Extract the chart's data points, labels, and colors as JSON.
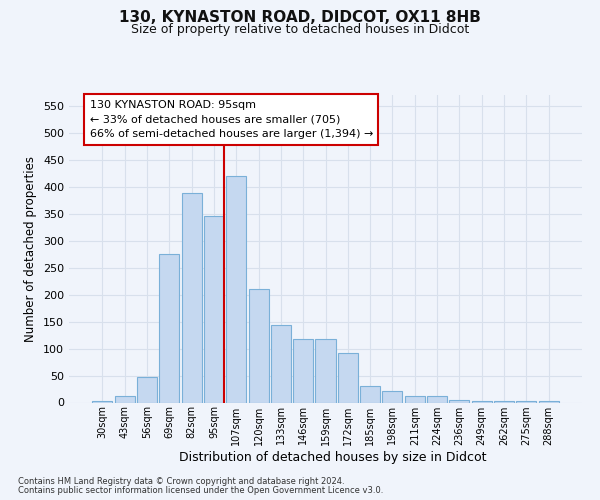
{
  "title1": "130, KYNASTON ROAD, DIDCOT, OX11 8HB",
  "title2": "Size of property relative to detached houses in Didcot",
  "xlabel": "Distribution of detached houses by size in Didcot",
  "ylabel": "Number of detached properties",
  "categories": [
    "30sqm",
    "43sqm",
    "56sqm",
    "69sqm",
    "82sqm",
    "95sqm",
    "107sqm",
    "120sqm",
    "133sqm",
    "146sqm",
    "159sqm",
    "172sqm",
    "185sqm",
    "198sqm",
    "211sqm",
    "224sqm",
    "236sqm",
    "249sqm",
    "262sqm",
    "275sqm",
    "288sqm"
  ],
  "values": [
    2,
    12,
    48,
    275,
    388,
    345,
    420,
    210,
    143,
    118,
    118,
    92,
    30,
    22,
    12,
    12,
    5,
    3,
    2,
    2,
    2
  ],
  "bar_color": "#c5d8f0",
  "bar_edge_color": "#7ab0d8",
  "vline_index": 5,
  "annotation_line1": "130 KYNASTON ROAD: 95sqm",
  "annotation_line2": "← 33% of detached houses are smaller (705)",
  "annotation_line3": "66% of semi-detached houses are larger (1,394) →",
  "vline_color": "#cc0000",
  "ann_edge_color": "#cc0000",
  "ann_bg_color": "#ffffff",
  "footer1": "Contains HM Land Registry data © Crown copyright and database right 2024.",
  "footer2": "Contains public sector information licensed under the Open Government Licence v3.0.",
  "ylim": [
    0,
    570
  ],
  "yticks": [
    0,
    50,
    100,
    150,
    200,
    250,
    300,
    350,
    400,
    450,
    500,
    550
  ],
  "bg_color": "#f0f4fb",
  "grid_color": "#d8e0ec"
}
